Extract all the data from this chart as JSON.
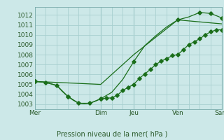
{
  "title": "Pression niveau de la mer( hPa )",
  "bg_color": "#cce8e8",
  "grid_color": "#a8d0d0",
  "line_color": "#1a6e1a",
  "marker_color": "#1a6e1a",
  "text_color": "#2a5a2a",
  "ylim": [
    1002.5,
    1012.8
  ],
  "yticks": [
    1003,
    1004,
    1005,
    1006,
    1007,
    1008,
    1009,
    1010,
    1011,
    1012
  ],
  "xtick_labels": [
    "Mer",
    "",
    "Dim",
    "Jeu",
    "",
    "Ven",
    "",
    "Sam"
  ],
  "xtick_positions": [
    0,
    3,
    6,
    9,
    11,
    13,
    15,
    17
  ],
  "vline_positions": [
    6,
    9,
    13,
    17
  ],
  "xmin": 0,
  "xmax": 17,
  "line1_x": [
    0,
    0.5,
    1,
    1.5,
    2,
    2.5,
    3,
    3.5,
    4,
    4.5,
    5,
    5.5,
    6,
    6.5,
    7,
    7.5,
    8,
    8.5,
    9,
    9.5,
    10,
    10.5,
    11,
    11.5,
    12,
    12.5,
    13,
    13.5,
    14,
    14.5,
    15,
    15.5,
    16,
    16.5,
    17
  ],
  "line1_y": [
    1005.3,
    1005.25,
    1005.2,
    1005.05,
    1004.9,
    1004.3,
    1003.8,
    1003.4,
    1003.1,
    1003.05,
    1003.1,
    1003.3,
    1003.55,
    1003.6,
    1003.65,
    1003.9,
    1004.4,
    1004.7,
    1005.0,
    1005.6,
    1006.05,
    1006.5,
    1007.0,
    1007.35,
    1007.6,
    1007.9,
    1008.0,
    1008.5,
    1009.0,
    1009.3,
    1009.6,
    1010.0,
    1010.3,
    1010.5,
    1010.5
  ],
  "line1_markers_x": [
    0,
    1,
    2,
    3,
    4,
    5,
    6,
    6.5,
    7,
    7.5,
    8,
    8.5,
    9,
    9.5,
    10,
    10.5,
    11,
    11.5,
    12,
    12.5,
    13,
    13.5,
    14,
    14.5,
    15,
    15.5,
    16,
    16.5,
    17
  ],
  "line1_markers_y": [
    1005.3,
    1005.2,
    1004.9,
    1003.8,
    1003.1,
    1003.1,
    1003.55,
    1003.6,
    1003.65,
    1003.9,
    1004.4,
    1004.7,
    1005.0,
    1005.6,
    1006.05,
    1006.5,
    1007.0,
    1007.35,
    1007.6,
    1007.9,
    1008.0,
    1008.5,
    1009.0,
    1009.3,
    1009.6,
    1010.0,
    1010.3,
    1010.5,
    1010.5
  ],
  "line2_x": [
    0,
    1,
    2,
    3,
    4,
    5,
    6,
    7,
    8,
    9,
    10,
    11,
    12,
    13,
    14,
    15,
    16,
    17
  ],
  "line2_y": [
    1005.3,
    1005.2,
    1004.9,
    1003.8,
    1003.1,
    1003.1,
    1003.55,
    1004.2,
    1005.5,
    1007.3,
    1008.9,
    1009.9,
    1010.8,
    1011.5,
    1011.8,
    1012.25,
    1012.15,
    1011.7
  ],
  "line2_markers_x": [
    0,
    3,
    6,
    9,
    13,
    15,
    16,
    17
  ],
  "line2_markers_y": [
    1005.3,
    1003.8,
    1003.55,
    1007.3,
    1011.5,
    1012.25,
    1012.15,
    1011.7
  ],
  "line3_x": [
    0,
    6,
    9,
    13,
    17
  ],
  "line3_y": [
    1005.3,
    1005.0,
    1008.0,
    1011.5,
    1011.1
  ]
}
